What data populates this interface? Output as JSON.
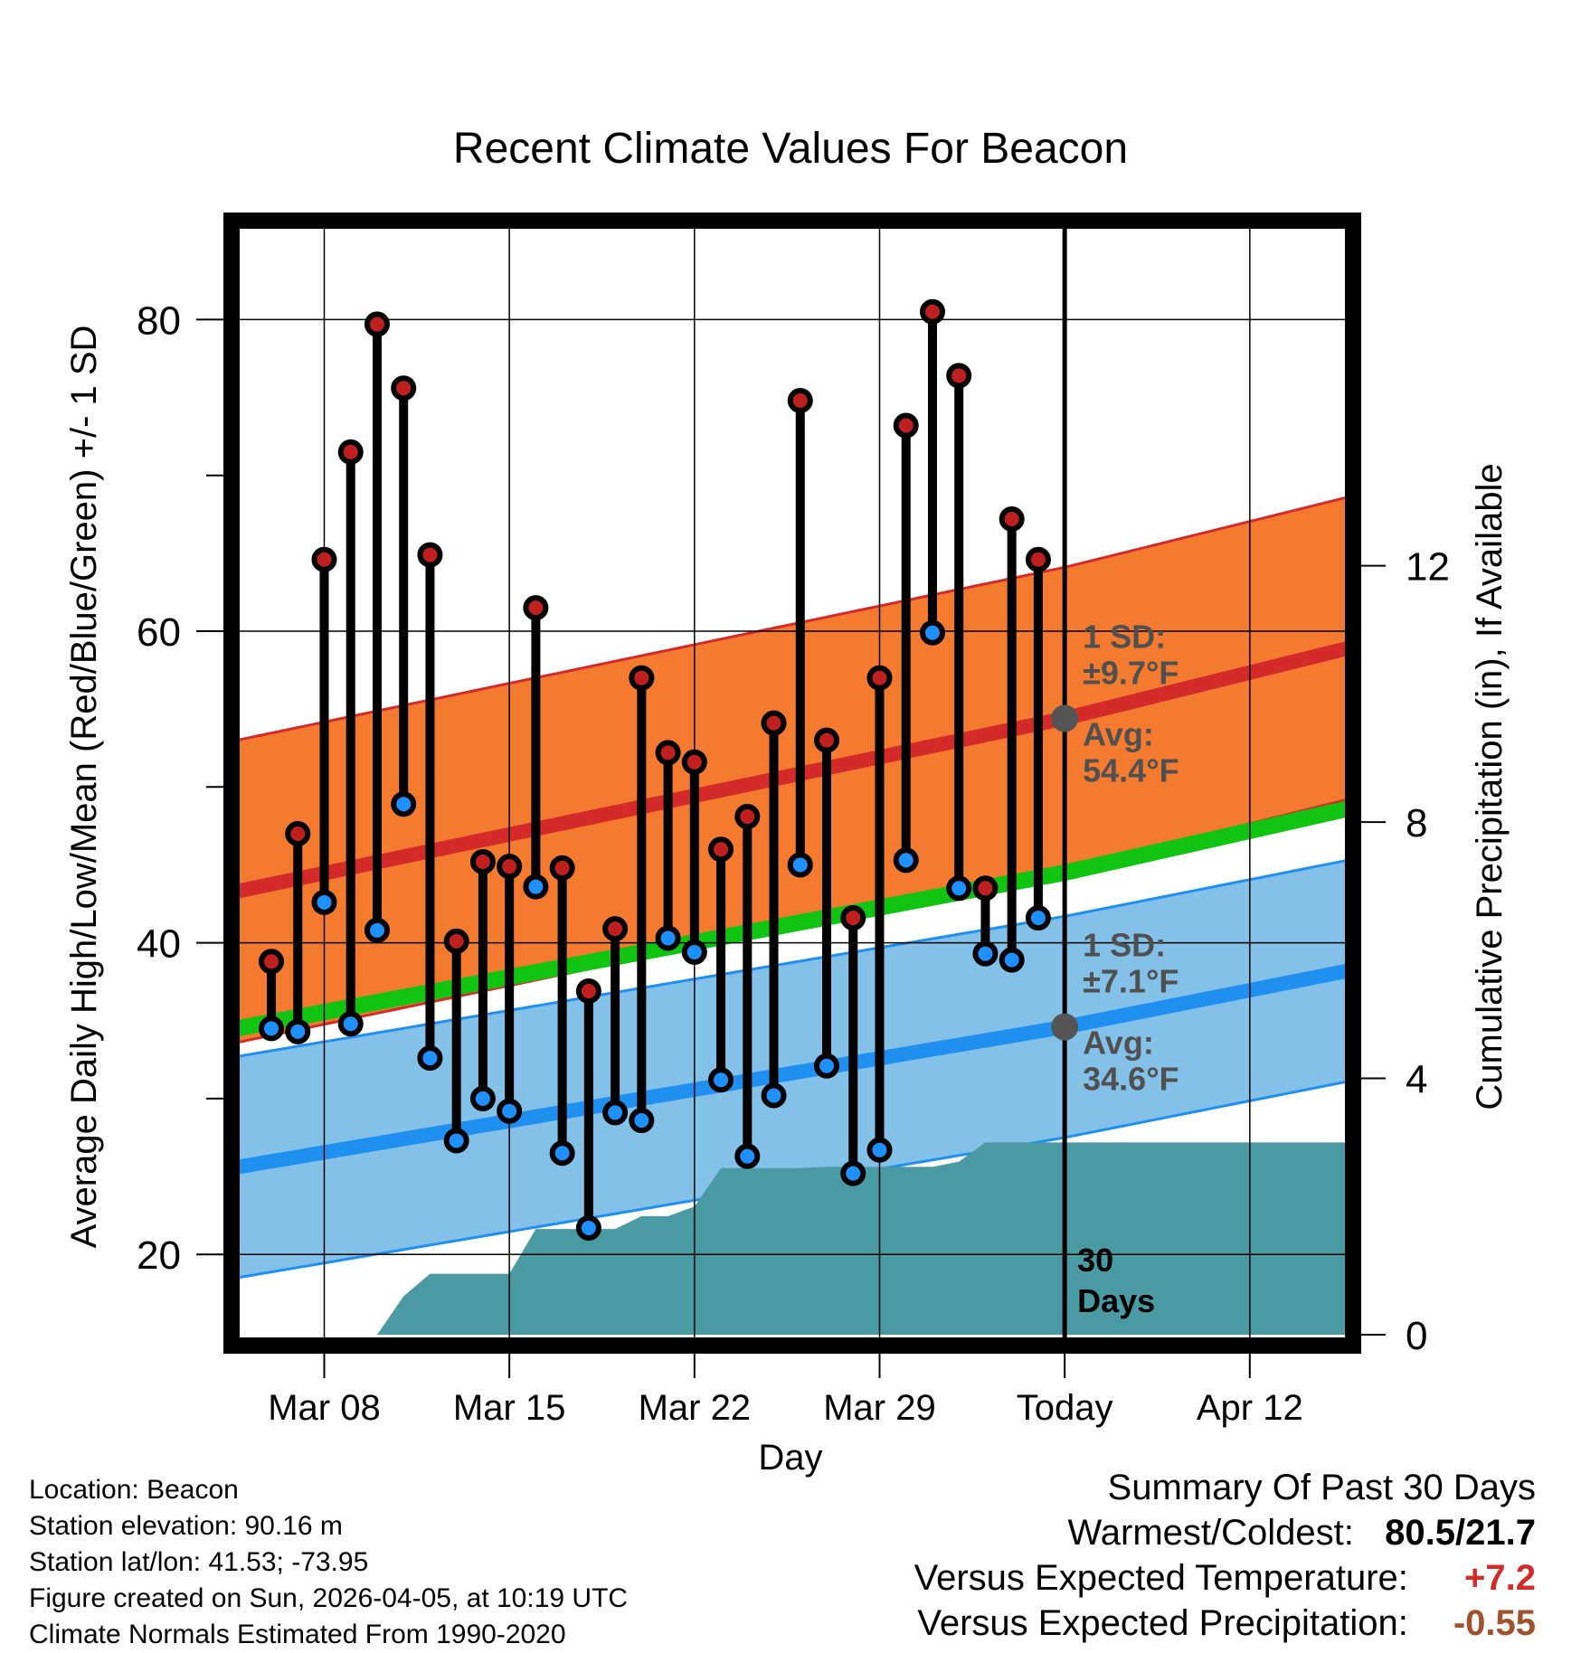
{
  "chart_data": {
    "type": "climate-range",
    "title": "Recent Climate Values For Beacon",
    "xlabel": "Day",
    "ylabel_left": "Average Daily High/Low/Mean (Red/Blue/Green) +/- 1 SD",
    "ylabel_right": "Cumulative Precipitation (in), If Available",
    "xlim": [
      4.7,
      46.7
    ],
    "ylim": [
      14.5,
      86
    ],
    "y_ticks": [
      20,
      40,
      60,
      80
    ],
    "y_minor_ticks": [
      30,
      50,
      70
    ],
    "precip_lim": [
      0,
      17.3
    ],
    "precip_ticks": [
      0,
      4,
      8,
      12
    ],
    "x_ticks": [
      {
        "day": 8,
        "label": "Mar 08"
      },
      {
        "day": 15,
        "label": "Mar 15"
      },
      {
        "day": 22,
        "label": "Mar 22"
      },
      {
        "day": 29,
        "label": "Mar 29"
      },
      {
        "day": 36,
        "label": "Today"
      },
      {
        "day": 43,
        "label": "Apr 12"
      }
    ],
    "today_day": 36,
    "normals": {
      "high_mean": [
        [
          4.7,
          43.3
        ],
        [
          36,
          54.4
        ],
        [
          46.7,
          58.9
        ]
      ],
      "high_sd": 9.7,
      "low_mean": [
        [
          4.7,
          25.6
        ],
        [
          36,
          34.6
        ],
        [
          46.7,
          38.2
        ]
      ],
      "low_sd": 7.1,
      "mean_mean": [
        [
          4.7,
          34.5
        ],
        [
          36,
          44.5
        ],
        [
          46.7,
          48.6
        ]
      ]
    },
    "annotations": {
      "high_sd": "1 SD:",
      "high_sd_val": "±9.7°F",
      "high_avg": "Avg:",
      "high_avg_val": "54.4°F",
      "low_sd": "1 SD:",
      "low_sd_val": "±7.1°F",
      "low_avg": "Avg:",
      "low_avg_val": "34.6°F",
      "days_num": "30",
      "days_word": "Days"
    },
    "observations": [
      {
        "day": 6,
        "high": 38.8,
        "low": 34.5
      },
      {
        "day": 7,
        "high": 47.0,
        "low": 34.3
      },
      {
        "day": 8,
        "high": 64.6,
        "low": 42.6
      },
      {
        "day": 9,
        "high": 71.5,
        "low": 34.8
      },
      {
        "day": 10,
        "high": 79.7,
        "low": 40.8
      },
      {
        "day": 11,
        "high": 75.6,
        "low": 48.9
      },
      {
        "day": 12,
        "high": 64.9,
        "low": 32.6
      },
      {
        "day": 13,
        "high": 40.1,
        "low": 27.3
      },
      {
        "day": 14,
        "high": 45.2,
        "low": 30.0
      },
      {
        "day": 15,
        "high": 44.9,
        "low": 29.2
      },
      {
        "day": 16,
        "high": 61.5,
        "low": 43.6
      },
      {
        "day": 17,
        "high": 44.8,
        "low": 26.5
      },
      {
        "day": 18,
        "high": 36.9,
        "low": 21.7
      },
      {
        "day": 19,
        "high": 40.9,
        "low": 29.1
      },
      {
        "day": 20,
        "high": 57.0,
        "low": 28.6
      },
      {
        "day": 21,
        "high": 52.2,
        "low": 40.3
      },
      {
        "day": 22,
        "high": 51.6,
        "low": 39.4
      },
      {
        "day": 23,
        "high": 46.0,
        "low": 31.2
      },
      {
        "day": 24,
        "high": 48.1,
        "low": 26.3
      },
      {
        "day": 25,
        "high": 54.1,
        "low": 30.2
      },
      {
        "day": 26,
        "high": 74.8,
        "low": 45.0
      },
      {
        "day": 27,
        "high": 53.0,
        "low": 32.1
      },
      {
        "day": 28,
        "high": 41.6,
        "low": 25.2
      },
      {
        "day": 29,
        "high": 57.0,
        "low": 26.7
      },
      {
        "day": 30,
        "high": 73.2,
        "low": 45.3
      },
      {
        "day": 31,
        "high": 80.5,
        "low": 59.9
      },
      {
        "day": 32,
        "high": 76.4,
        "low": 43.5
      },
      {
        "day": 33,
        "high": 43.5,
        "low": 39.3
      },
      {
        "day": 34,
        "high": 67.2,
        "low": 38.9
      },
      {
        "day": 35,
        "high": 64.6,
        "low": 41.6
      }
    ],
    "precipitation": [
      [
        10,
        0.0
      ],
      [
        11,
        0.6
      ],
      [
        12,
        0.95
      ],
      [
        13,
        0.95
      ],
      [
        14,
        0.95
      ],
      [
        15,
        0.95
      ],
      [
        16,
        1.65
      ],
      [
        17,
        1.65
      ],
      [
        18,
        1.65
      ],
      [
        19,
        1.65
      ],
      [
        20,
        1.85
      ],
      [
        21,
        1.85
      ],
      [
        22,
        2.0
      ],
      [
        23,
        2.6
      ],
      [
        24,
        2.6
      ],
      [
        25,
        2.6
      ],
      [
        26,
        2.6
      ],
      [
        27,
        2.62
      ],
      [
        28,
        2.62
      ],
      [
        29,
        2.62
      ],
      [
        30,
        2.62
      ],
      [
        31,
        2.62
      ],
      [
        32,
        2.7
      ],
      [
        33,
        3.0
      ],
      [
        34,
        3.0
      ],
      [
        35,
        3.0
      ],
      [
        36,
        3.0
      ],
      [
        46.7,
        3.0
      ]
    ]
  },
  "info": {
    "location": "Location: Beacon",
    "elevation": "Station elevation: 90.16 m",
    "latlon": "Station lat/lon: 41.53; -73.95",
    "created": "Figure created on Sun, 2026-04-05, at 10:19 UTC",
    "normals": "Climate Normals Estimated From 1990-2020"
  },
  "summary": {
    "title": "Summary Of Past 30 Days",
    "warm_cold_label": "Warmest/Coldest:",
    "warm_cold_value": "80.5/21.7",
    "temp_label": "Versus Expected Temperature:",
    "temp_value": "+7.2",
    "precip_label": "Versus Expected Precipitation:",
    "precip_value": "-0.55"
  },
  "colors": {
    "high_band": "#f47a2f",
    "high_line": "#d42a2a",
    "low_band": "#84c1e8",
    "low_line": "#1f8ff0",
    "mean_line": "#11c411",
    "precip": "#4a9aa4",
    "high_dot": "#c01f1f",
    "low_dot": "#1e90ff",
    "marker": "#555555",
    "annotation": "#505050",
    "temp_value": "#d42a2a",
    "precip_value": "#a0522d"
  }
}
